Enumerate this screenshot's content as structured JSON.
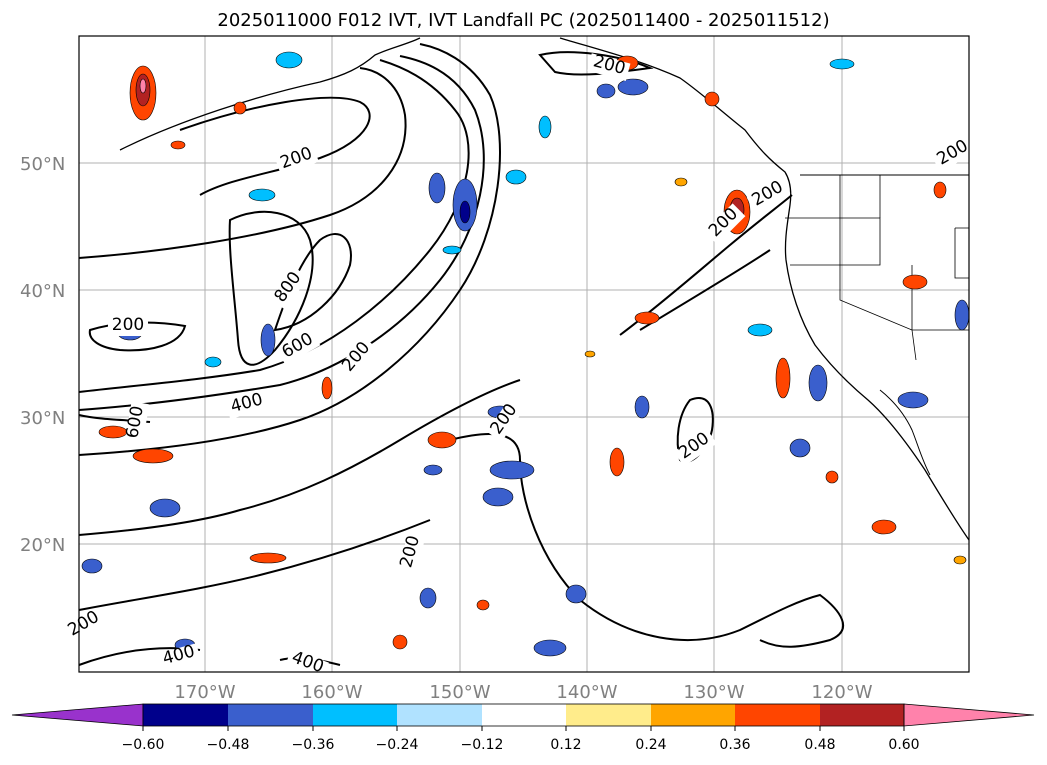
{
  "title": "2025011000 F012 IVT, IVT Landfall PC (2025011400 - 2025011512)",
  "lat_labels": [
    "50°N",
    "40°N",
    "30°N",
    "20°N"
  ],
  "lon_labels": [
    "170°W",
    "160°W",
    "150°W",
    "140°W",
    "130°W",
    "120°W"
  ],
  "ivt_contour_labels": [
    "200",
    "200",
    "200",
    "200",
    "200",
    "200",
    "200",
    "200",
    "200",
    "200",
    "800",
    "600",
    "400",
    "600",
    "400",
    "400",
    "200"
  ],
  "colorbar": {
    "ticks": [
      "−0.60",
      "−0.48",
      "−0.36",
      "−0.24",
      "−0.12",
      "0.12",
      "0.24",
      "0.36",
      "0.48",
      "0.60"
    ],
    "colors": [
      "#9932cc",
      "#00008b",
      "#3a5fcd",
      "#00bfff",
      "#b0e2ff",
      "#ffffff",
      "#ffec8b",
      "#ffa500",
      "#ff4500",
      "#b22222",
      "#ff82ab"
    ]
  }
}
